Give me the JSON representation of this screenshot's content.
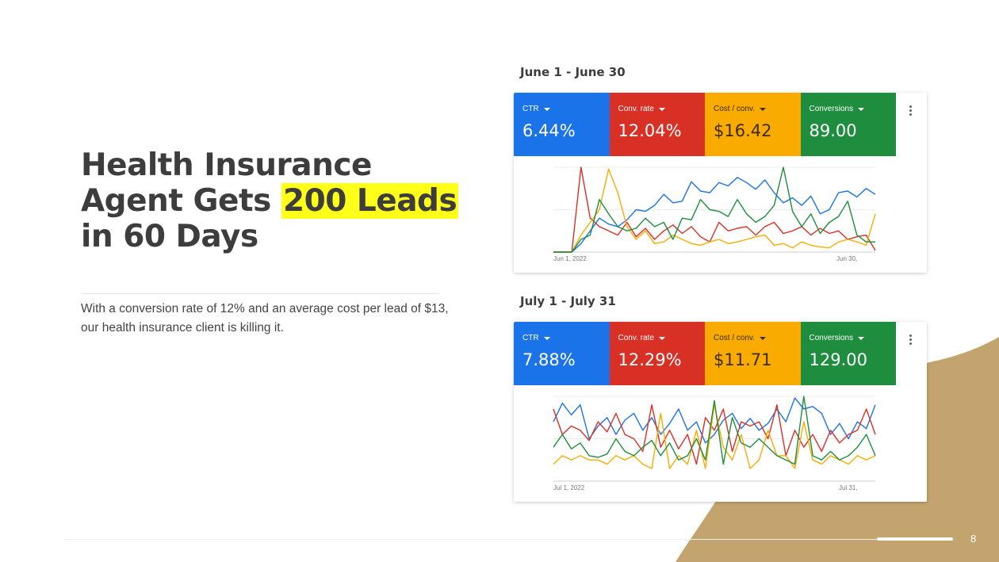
{
  "headline": {
    "line1": "Health Insurance",
    "line2_pre": "Agent Gets ",
    "line2_highlight": "200 Leads",
    "line3": "in 60 Days"
  },
  "body_text": "With a conversion rate of 12% and an average cost per lead of $13, our health insurance client is killing it.",
  "page_number": "8",
  "colors": {
    "ctr": "#1a73e8",
    "conv_rate": "#d93025",
    "cost_conv": "#f9ab00",
    "conversions": "#1e8e3e",
    "tan": "#c4a46e",
    "highlight": "#ffff1a"
  },
  "reports": [
    {
      "period": "June 1 - June 30",
      "metrics": [
        {
          "label": "CTR",
          "value": "6.44%"
        },
        {
          "label": "Conv. rate",
          "value": "12.04%"
        },
        {
          "label": "Cost / conv.",
          "value": "$16.42"
        },
        {
          "label": "Conversions",
          "value": "89.00"
        }
      ],
      "x_start": "Jun 1, 2022",
      "x_end": "Jun 30,",
      "series": {
        "blue": [
          0,
          0,
          0,
          10,
          25,
          40,
          33,
          30,
          38,
          50,
          48,
          55,
          68,
          58,
          60,
          83,
          72,
          70,
          82,
          78,
          88,
          82,
          74,
          85,
          70,
          58,
          64,
          55,
          66,
          45,
          50,
          70,
          72,
          65,
          75,
          68
        ],
        "red": [
          0,
          0,
          0,
          100,
          40,
          30,
          25,
          20,
          35,
          18,
          28,
          15,
          25,
          32,
          22,
          30,
          18,
          12,
          35,
          25,
          28,
          30,
          20,
          30,
          35,
          22,
          25,
          30,
          20,
          28,
          22,
          25,
          15,
          18,
          20,
          2
        ],
        "yellow": [
          0,
          0,
          0,
          20,
          35,
          50,
          98,
          70,
          30,
          15,
          25,
          10,
          12,
          20,
          15,
          10,
          8,
          12,
          15,
          10,
          12,
          15,
          18,
          20,
          8,
          10,
          5,
          12,
          8,
          6,
          5,
          12,
          15,
          12,
          8,
          45
        ],
        "green": [
          0,
          0,
          0,
          15,
          20,
          62,
          45,
          30,
          25,
          28,
          40,
          30,
          35,
          15,
          40,
          38,
          62,
          50,
          48,
          42,
          62,
          45,
          35,
          42,
          55,
          100,
          48,
          30,
          45,
          22,
          35,
          42,
          60,
          20,
          12,
          12
        ]
      },
      "chart_max": 100
    },
    {
      "period": "July 1 - July 31",
      "metrics": [
        {
          "label": "CTR",
          "value": "7.88%"
        },
        {
          "label": "Conv. rate",
          "value": "12.29%"
        },
        {
          "label": "Cost / conv.",
          "value": "$11.71"
        },
        {
          "label": "Conversions",
          "value": "129.00"
        }
      ],
      "x_start": "Jul 1, 2022",
      "x_end": "Jul 31,",
      "series": {
        "blue": [
          70,
          92,
          78,
          90,
          50,
          65,
          75,
          55,
          72,
          80,
          60,
          75,
          55,
          68,
          85,
          60,
          70,
          45,
          55,
          72,
          80,
          62,
          74,
          60,
          68,
          85,
          70,
          98,
          85,
          88,
          80,
          55,
          68,
          50,
          70,
          62,
          90
        ],
        "red": [
          85,
          55,
          65,
          60,
          48,
          70,
          58,
          80,
          55,
          50,
          35,
          90,
          40,
          60,
          38,
          55,
          20,
          75,
          60,
          85,
          35,
          70,
          65,
          70,
          50,
          90,
          30,
          60,
          40,
          55,
          35,
          60,
          45,
          55,
          60,
          85,
          55
        ],
        "yellow": [
          20,
          30,
          25,
          30,
          25,
          25,
          20,
          30,
          25,
          30,
          20,
          15,
          80,
          15,
          30,
          20,
          60,
          15,
          90,
          40,
          25,
          55,
          15,
          25,
          60,
          30,
          30,
          15,
          70,
          25,
          20,
          30,
          25,
          20,
          30,
          25,
          30
        ],
        "green": [
          40,
          55,
          38,
          45,
          30,
          28,
          32,
          50,
          35,
          30,
          40,
          48,
          30,
          45,
          25,
          30,
          50,
          25,
          95,
          20,
          75,
          45,
          40,
          50,
          40,
          30,
          25,
          20,
          100,
          30,
          25,
          35,
          25,
          30,
          40,
          55,
          30
        ]
      },
      "chart_max": 100
    }
  ]
}
